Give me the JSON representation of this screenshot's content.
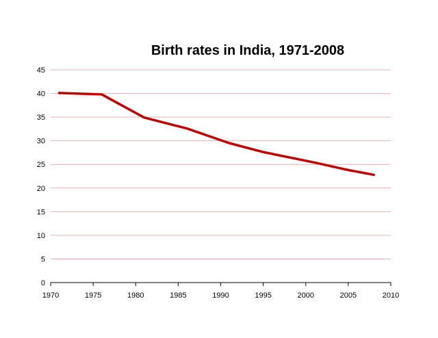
{
  "chart_data": {
    "type": "line",
    "title": "Birth rates in India, 1971-2008",
    "xlabel": "",
    "ylabel": "",
    "xlim": [
      1970,
      2010
    ],
    "ylim": [
      0,
      45
    ],
    "x_ticks": [
      1970,
      1975,
      1980,
      1985,
      1990,
      1995,
      2000,
      2005,
      2010
    ],
    "y_ticks": [
      0,
      5,
      10,
      15,
      20,
      25,
      30,
      35,
      40,
      45
    ],
    "grid": "horizontal",
    "legend": "none",
    "series": [
      {
        "color": "#c00000",
        "x": [
          1971,
          1976,
          1981,
          1986,
          1991,
          1995,
          2001,
          2005,
          2008
        ],
        "y": [
          40.1,
          39.8,
          34.9,
          32.6,
          29.5,
          27.6,
          25.4,
          23.8,
          22.8
        ]
      }
    ],
    "colors": {
      "line": "#c00000",
      "grid": "#e6b3b3",
      "axis": "#000000"
    }
  }
}
